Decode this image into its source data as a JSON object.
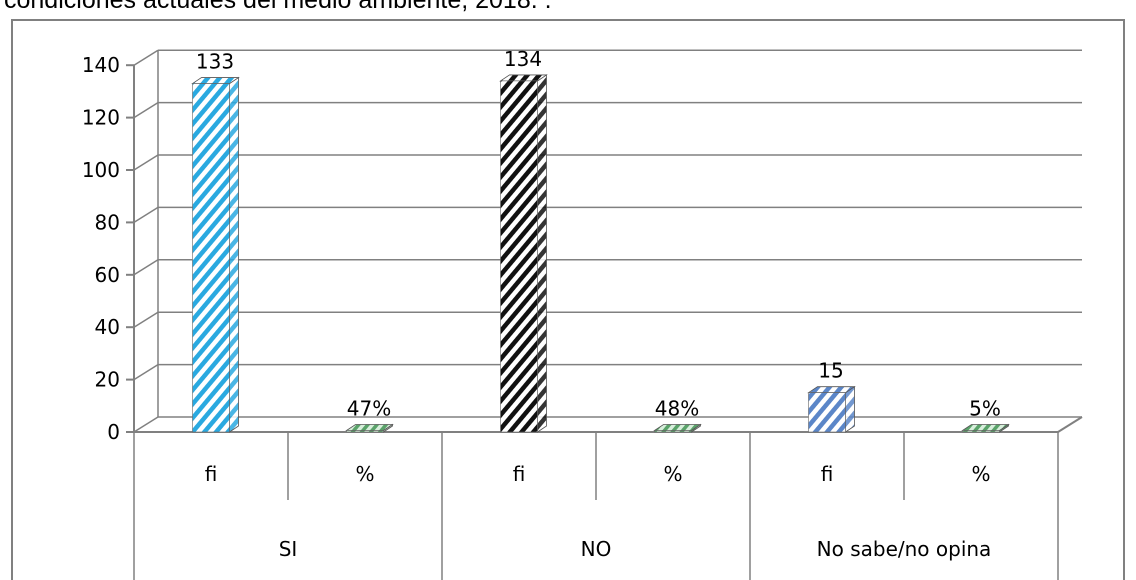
{
  "caption": "condiciones actuales del medio ambiente, 2018. .",
  "chart_data": {
    "type": "bar",
    "three_d": true,
    "groups": [
      {
        "label": "SI",
        "bars": [
          {
            "label": "fi",
            "value": 133,
            "value_label": "133",
            "pattern": "cyan-diagonal"
          },
          {
            "label": "%",
            "value": 0.47,
            "value_label": "47%",
            "pattern": "green-diagonal"
          }
        ]
      },
      {
        "label": "NO",
        "bars": [
          {
            "label": "fi",
            "value": 134,
            "value_label": "134",
            "pattern": "black-diagonal"
          },
          {
            "label": "%",
            "value": 0.48,
            "value_label": "48%",
            "pattern": "green-diagonal"
          }
        ]
      },
      {
        "label": "No sabe/no opina",
        "bars": [
          {
            "label": "fi",
            "value": 15,
            "value_label": "15",
            "pattern": "blue-diagonal"
          },
          {
            "label": "%",
            "value": 0.05,
            "value_label": "5%",
            "pattern": "green-diagonal"
          }
        ]
      }
    ],
    "y_ticks": [
      0,
      20,
      40,
      60,
      80,
      100,
      120,
      140
    ],
    "ylim": [
      0,
      140
    ],
    "grid": true,
    "colors": {
      "cyan": "#2aa9e0",
      "black": "#111111",
      "blue": "#5b86c8",
      "green": "#5aa36a",
      "grid": "#808080"
    }
  }
}
